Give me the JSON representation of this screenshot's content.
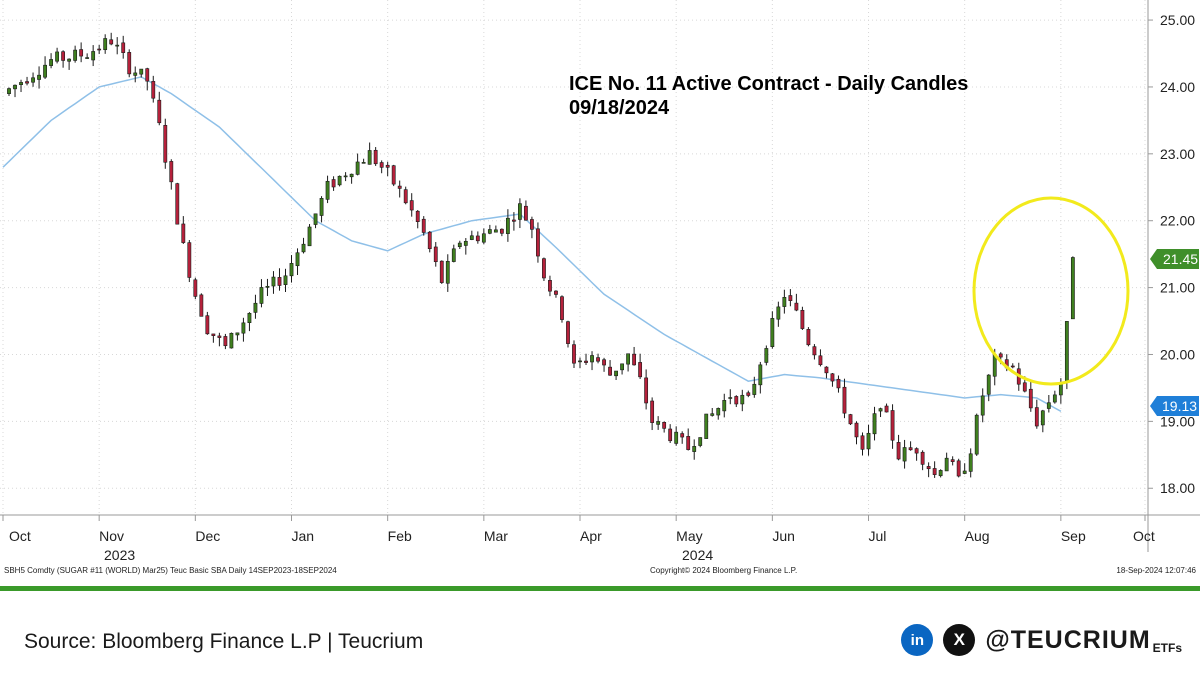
{
  "chart_data": {
    "type": "candlestick",
    "title": "ICE No. 11 Active Contract - Daily Candles",
    "subtitle": "09/18/2024",
    "ylim": [
      17.6,
      25.3
    ],
    "y_ticks": [
      "25.00",
      "24.00",
      "23.00",
      "22.00",
      "21.00",
      "20.00",
      "19.00",
      "18.00"
    ],
    "x_month_labels": [
      "Oct",
      "Nov",
      "Dec",
      "Jan",
      "Feb",
      "Mar",
      "Apr",
      "May",
      "Jun",
      "Jul",
      "Aug",
      "Sep",
      "Oct"
    ],
    "x_year_labels": [
      "2023",
      "2024"
    ],
    "last_price_label": "21.45",
    "ma_label": "19.13",
    "up_color": "#3f7f1f",
    "down_color": "#b5213b",
    "ma_color": "#8fc0e8",
    "grid": true,
    "price_path": [
      [
        0,
        23.9
      ],
      [
        8,
        24.4
      ],
      [
        14,
        24.5
      ],
      [
        18,
        24.7
      ],
      [
        21,
        24.3
      ],
      [
        24,
        24.1
      ],
      [
        26,
        23.4
      ],
      [
        28,
        22.5
      ],
      [
        30,
        21.6
      ],
      [
        32,
        20.9
      ],
      [
        34,
        20.4
      ],
      [
        37,
        20.1
      ],
      [
        40,
        20.5
      ],
      [
        43,
        20.9
      ],
      [
        47,
        21.2
      ],
      [
        51,
        21.9
      ],
      [
        54,
        22.5
      ],
      [
        58,
        22.8
      ],
      [
        61,
        23.0
      ],
      [
        64,
        22.7
      ],
      [
        67,
        22.3
      ],
      [
        70,
        21.8
      ],
      [
        73,
        21.1
      ],
      [
        76,
        21.7
      ],
      [
        80,
        21.8
      ],
      [
        83,
        21.9
      ],
      [
        86,
        22.2
      ],
      [
        88,
        21.9
      ],
      [
        90,
        21.2
      ],
      [
        93,
        20.6
      ],
      [
        95,
        19.8
      ],
      [
        98,
        20.0
      ],
      [
        101,
        19.7
      ],
      [
        104,
        20.0
      ],
      [
        106,
        19.6
      ],
      [
        108,
        19.0
      ],
      [
        111,
        18.8
      ],
      [
        114,
        18.6
      ],
      [
        117,
        19.0
      ],
      [
        121,
        19.4
      ],
      [
        124,
        19.3
      ],
      [
        127,
        20.2
      ],
      [
        130,
        20.9
      ],
      [
        132,
        20.6
      ],
      [
        134,
        20.2
      ],
      [
        137,
        19.8
      ],
      [
        140,
        19.2
      ],
      [
        143,
        18.5
      ],
      [
        146,
        19.3
      ],
      [
        149,
        18.5
      ],
      [
        152,
        18.6
      ],
      [
        155,
        18.2
      ],
      [
        157,
        18.5
      ],
      [
        159,
        18.1
      ],
      [
        161,
        18.6
      ],
      [
        163,
        19.4
      ],
      [
        165,
        19.9
      ],
      [
        168,
        19.8
      ],
      [
        170,
        19.4
      ],
      [
        172,
        19.0
      ],
      [
        174,
        19.3
      ],
      [
        176,
        19.6
      ],
      [
        177,
        20.4
      ],
      [
        178,
        21.45
      ]
    ],
    "ma_path": [
      [
        0,
        22.8
      ],
      [
        8,
        23.5
      ],
      [
        16,
        24.0
      ],
      [
        23,
        24.15
      ],
      [
        28,
        23.9
      ],
      [
        36,
        23.4
      ],
      [
        44,
        22.7
      ],
      [
        52,
        22.0
      ],
      [
        58,
        21.7
      ],
      [
        64,
        21.55
      ],
      [
        70,
        21.8
      ],
      [
        78,
        22.0
      ],
      [
        86,
        22.1
      ],
      [
        92,
        21.6
      ],
      [
        100,
        20.9
      ],
      [
        110,
        20.3
      ],
      [
        118,
        19.9
      ],
      [
        124,
        19.6
      ],
      [
        130,
        19.7
      ],
      [
        136,
        19.65
      ],
      [
        144,
        19.55
      ],
      [
        152,
        19.45
      ],
      [
        160,
        19.35
      ],
      [
        166,
        19.4
      ],
      [
        172,
        19.35
      ],
      [
        176,
        19.15
      ]
    ]
  },
  "footer": {
    "left": "SBH5 Comdty (SUGAR #11 (WORLD) Mar25) Teuc Basic SBA  Daily 14SEP2023-18SEP2024",
    "center": "Copyright© 2024 Bloomberg Finance L.P.",
    "right": "18-Sep-2024 12:07:46"
  },
  "source": "Source: Bloomberg Finance L.P | Teucrium",
  "brand": {
    "linkedin": "in",
    "x": "X",
    "handle": "@TEUCRIUM",
    "suffix": "ETFs"
  },
  "icons": [
    "linkedin-icon",
    "x-icon"
  ]
}
